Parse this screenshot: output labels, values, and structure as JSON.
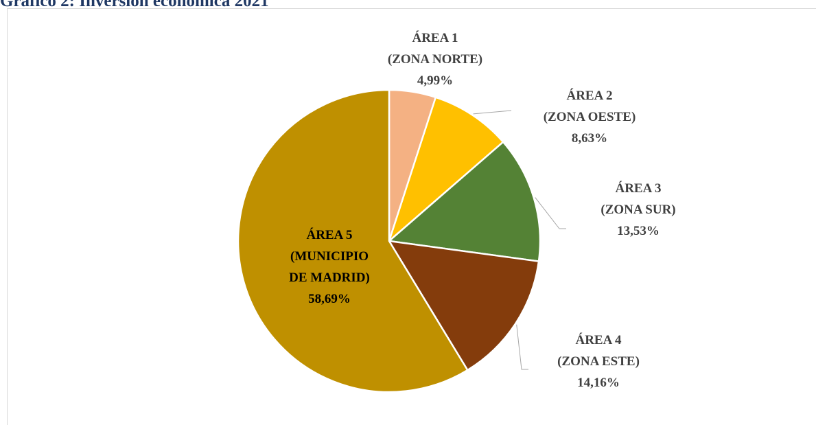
{
  "chart_data": {
    "type": "pie",
    "title": "Gráfico 2: Inversión económica 2021",
    "categories": [
      "ÁREA 1\n(ZONA NORTE)",
      "ÁREA 2\n(ZONA OESTE)",
      "ÁREA 3\n(ZONA SUR)",
      "ÁREA 4\n(ZONA ESTE)",
      "ÁREA 5\n(MUNICIPIO\nDE MADRID)"
    ],
    "values": [
      4.99,
      8.63,
      13.53,
      14.16,
      58.69
    ],
    "value_labels": [
      "4,99%",
      "8,63%",
      "13,53%",
      "14,16%",
      "58,69%"
    ],
    "colors": [
      "#f4b183",
      "#ffc000",
      "#548235",
      "#843c0c",
      "#bf9000"
    ]
  }
}
